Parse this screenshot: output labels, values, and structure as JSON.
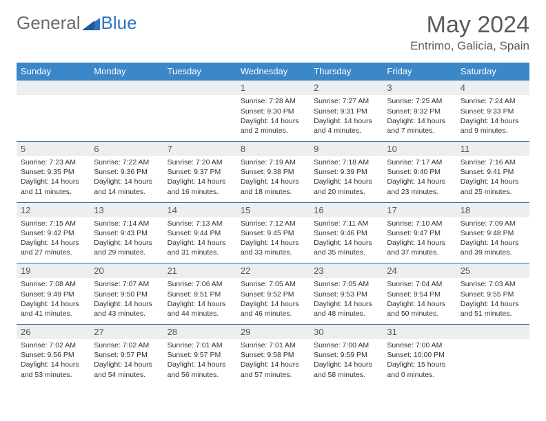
{
  "logo": {
    "text1": "General",
    "text2": "Blue"
  },
  "title": "May 2024",
  "location": "Entrimo, Galicia, Spain",
  "header_bg": "#3b87c8",
  "daynum_bg": "#eceeef",
  "rule_color": "#2f6ea8",
  "day_names": [
    "Sunday",
    "Monday",
    "Tuesday",
    "Wednesday",
    "Thursday",
    "Friday",
    "Saturday"
  ],
  "weeks": [
    [
      null,
      null,
      null,
      {
        "n": "1",
        "sunrise": "7:28 AM",
        "sunset": "9:30 PM",
        "dl": "14 hours and 2 minutes."
      },
      {
        "n": "2",
        "sunrise": "7:27 AM",
        "sunset": "9:31 PM",
        "dl": "14 hours and 4 minutes."
      },
      {
        "n": "3",
        "sunrise": "7:25 AM",
        "sunset": "9:32 PM",
        "dl": "14 hours and 7 minutes."
      },
      {
        "n": "4",
        "sunrise": "7:24 AM",
        "sunset": "9:33 PM",
        "dl": "14 hours and 9 minutes."
      }
    ],
    [
      {
        "n": "5",
        "sunrise": "7:23 AM",
        "sunset": "9:35 PM",
        "dl": "14 hours and 11 minutes."
      },
      {
        "n": "6",
        "sunrise": "7:22 AM",
        "sunset": "9:36 PM",
        "dl": "14 hours and 14 minutes."
      },
      {
        "n": "7",
        "sunrise": "7:20 AM",
        "sunset": "9:37 PM",
        "dl": "14 hours and 16 minutes."
      },
      {
        "n": "8",
        "sunrise": "7:19 AM",
        "sunset": "9:38 PM",
        "dl": "14 hours and 18 minutes."
      },
      {
        "n": "9",
        "sunrise": "7:18 AM",
        "sunset": "9:39 PM",
        "dl": "14 hours and 20 minutes."
      },
      {
        "n": "10",
        "sunrise": "7:17 AM",
        "sunset": "9:40 PM",
        "dl": "14 hours and 23 minutes."
      },
      {
        "n": "11",
        "sunrise": "7:16 AM",
        "sunset": "9:41 PM",
        "dl": "14 hours and 25 minutes."
      }
    ],
    [
      {
        "n": "12",
        "sunrise": "7:15 AM",
        "sunset": "9:42 PM",
        "dl": "14 hours and 27 minutes."
      },
      {
        "n": "13",
        "sunrise": "7:14 AM",
        "sunset": "9:43 PM",
        "dl": "14 hours and 29 minutes."
      },
      {
        "n": "14",
        "sunrise": "7:13 AM",
        "sunset": "9:44 PM",
        "dl": "14 hours and 31 minutes."
      },
      {
        "n": "15",
        "sunrise": "7:12 AM",
        "sunset": "9:45 PM",
        "dl": "14 hours and 33 minutes."
      },
      {
        "n": "16",
        "sunrise": "7:11 AM",
        "sunset": "9:46 PM",
        "dl": "14 hours and 35 minutes."
      },
      {
        "n": "17",
        "sunrise": "7:10 AM",
        "sunset": "9:47 PM",
        "dl": "14 hours and 37 minutes."
      },
      {
        "n": "18",
        "sunrise": "7:09 AM",
        "sunset": "9:48 PM",
        "dl": "14 hours and 39 minutes."
      }
    ],
    [
      {
        "n": "19",
        "sunrise": "7:08 AM",
        "sunset": "9:49 PM",
        "dl": "14 hours and 41 minutes."
      },
      {
        "n": "20",
        "sunrise": "7:07 AM",
        "sunset": "9:50 PM",
        "dl": "14 hours and 43 minutes."
      },
      {
        "n": "21",
        "sunrise": "7:06 AM",
        "sunset": "9:51 PM",
        "dl": "14 hours and 44 minutes."
      },
      {
        "n": "22",
        "sunrise": "7:05 AM",
        "sunset": "9:52 PM",
        "dl": "14 hours and 46 minutes."
      },
      {
        "n": "23",
        "sunrise": "7:05 AM",
        "sunset": "9:53 PM",
        "dl": "14 hours and 48 minutes."
      },
      {
        "n": "24",
        "sunrise": "7:04 AM",
        "sunset": "9:54 PM",
        "dl": "14 hours and 50 minutes."
      },
      {
        "n": "25",
        "sunrise": "7:03 AM",
        "sunset": "9:55 PM",
        "dl": "14 hours and 51 minutes."
      }
    ],
    [
      {
        "n": "26",
        "sunrise": "7:02 AM",
        "sunset": "9:56 PM",
        "dl": "14 hours and 53 minutes."
      },
      {
        "n": "27",
        "sunrise": "7:02 AM",
        "sunset": "9:57 PM",
        "dl": "14 hours and 54 minutes."
      },
      {
        "n": "28",
        "sunrise": "7:01 AM",
        "sunset": "9:57 PM",
        "dl": "14 hours and 56 minutes."
      },
      {
        "n": "29",
        "sunrise": "7:01 AM",
        "sunset": "9:58 PM",
        "dl": "14 hours and 57 minutes."
      },
      {
        "n": "30",
        "sunrise": "7:00 AM",
        "sunset": "9:59 PM",
        "dl": "14 hours and 58 minutes."
      },
      {
        "n": "31",
        "sunrise": "7:00 AM",
        "sunset": "10:00 PM",
        "dl": "15 hours and 0 minutes."
      },
      null
    ]
  ]
}
